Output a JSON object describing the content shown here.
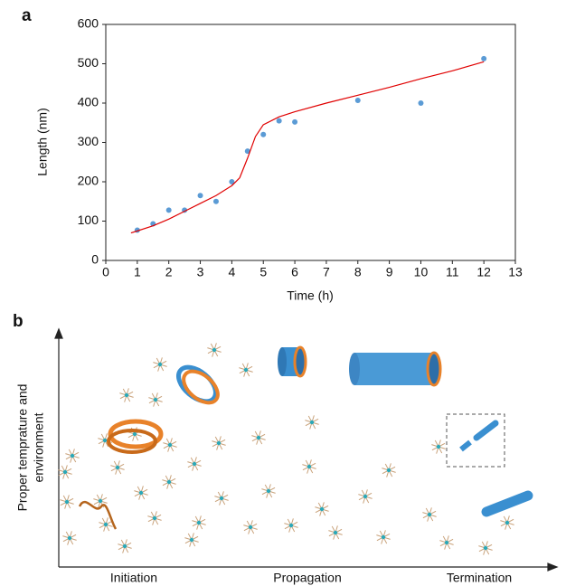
{
  "chart_data": {
    "type": "scatter",
    "label": "a",
    "xlabel": "Time (h)",
    "ylabel": "Length (nm)",
    "xlim": [
      0,
      13
    ],
    "xticks": [
      0,
      1,
      2,
      3,
      4,
      5,
      6,
      7,
      8,
      9,
      10,
      11,
      12,
      13
    ],
    "ylim": [
      0,
      600
    ],
    "yticks": [
      0,
      100,
      200,
      300,
      400,
      500,
      600
    ],
    "series": [
      {
        "type": "scatter",
        "color": "#5b9bd5",
        "x": [
          1,
          1.5,
          2,
          2.5,
          3,
          3.5,
          4,
          4.5,
          5,
          5.5,
          6,
          8,
          10,
          12
        ],
        "values": [
          77,
          93,
          128,
          128,
          165,
          150,
          200,
          278,
          320,
          355,
          352,
          407,
          400,
          513
        ]
      },
      {
        "type": "line",
        "color": "#e00000",
        "x": [
          0.8,
          1,
          1.5,
          2,
          2.5,
          3,
          3.5,
          4,
          4.25,
          4.5,
          4.75,
          5,
          5.5,
          6,
          7,
          8,
          9,
          10,
          11,
          12
        ],
        "values": [
          70,
          75,
          88,
          105,
          125,
          145,
          165,
          190,
          210,
          260,
          315,
          345,
          365,
          378,
          400,
          420,
          440,
          462,
          482,
          505
        ]
      }
    ]
  },
  "diagram": {
    "label": "b",
    "y_axis_label": [
      "Proper temprature and",
      "environment"
    ],
    "stages": [
      "Initiation",
      "Propagation",
      "Termination"
    ]
  }
}
